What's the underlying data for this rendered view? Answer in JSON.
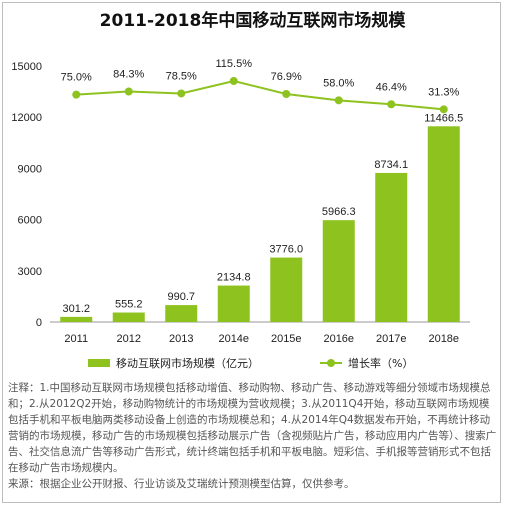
{
  "title": "2011-2018年中国移动互联网市场规模",
  "legend": {
    "bar_label": "移动互联网市场规模（亿元）",
    "line_label": "增长率（%）"
  },
  "notes": {
    "note": "注释：1.中国移动互联网市场规模包括移动增值、移动购物、移动广告、移动游戏等细分领域市场规模总和；2.从2012Q2开始，移动购物统计的市场规模为营收规模；3.从2011Q4开始，移动互联网市场规模包括手机和平板电脑两类移动设备上创造的市场规模总和；4.从2014年Q4数据发布开始，不再统计移动营销的市场规模，移动广告的市场规模包括移动展示广告（含视频贴片广告，移动应用内广告等）、搜索广告、社交信息流广告等移动广告形式，统计终端包括手机和平板电脑。短彩信、手机报等营销形式不包括在移动广告市场规模内。",
    "source": "来源：根据企业公开财报、行业访谈及艾瑞统计预测模型估算，仅供参考。"
  },
  "colors": {
    "bar": "#8dc21f",
    "line": "#8dc21f",
    "axis": "#999999"
  },
  "chart_data": {
    "type": "bar",
    "categories": [
      "2011",
      "2012",
      "2013",
      "2014e",
      "2015e",
      "2016e",
      "2017e",
      "2018e"
    ],
    "series": [
      {
        "name": "移动互联网市场规模（亿元）",
        "type": "bar",
        "values": [
          301.2,
          555.2,
          990.7,
          2134.8,
          3776.0,
          5966.3,
          8734.1,
          11466.5
        ],
        "labels": [
          "301.2",
          "555.2",
          "990.7",
          "2134.8",
          "3776.0",
          "5966.3",
          "8734.1",
          "11466.5"
        ]
      },
      {
        "name": "增长率（%）",
        "type": "line",
        "values": [
          75.0,
          84.3,
          78.5,
          115.5,
          76.9,
          58.0,
          46.4,
          31.3
        ],
        "labels": [
          "75.0%",
          "84.3%",
          "78.5%",
          "115.5%",
          "76.9%",
          "58.0%",
          "46.4%",
          "31.3%"
        ]
      }
    ],
    "yticks": [
      "0",
      "3000",
      "6000",
      "9000",
      "12000",
      "15000"
    ],
    "ylim": [
      0,
      15000
    ],
    "line_ylim": [
      -600,
      160
    ],
    "grid": false,
    "legend_position": "bottom"
  }
}
